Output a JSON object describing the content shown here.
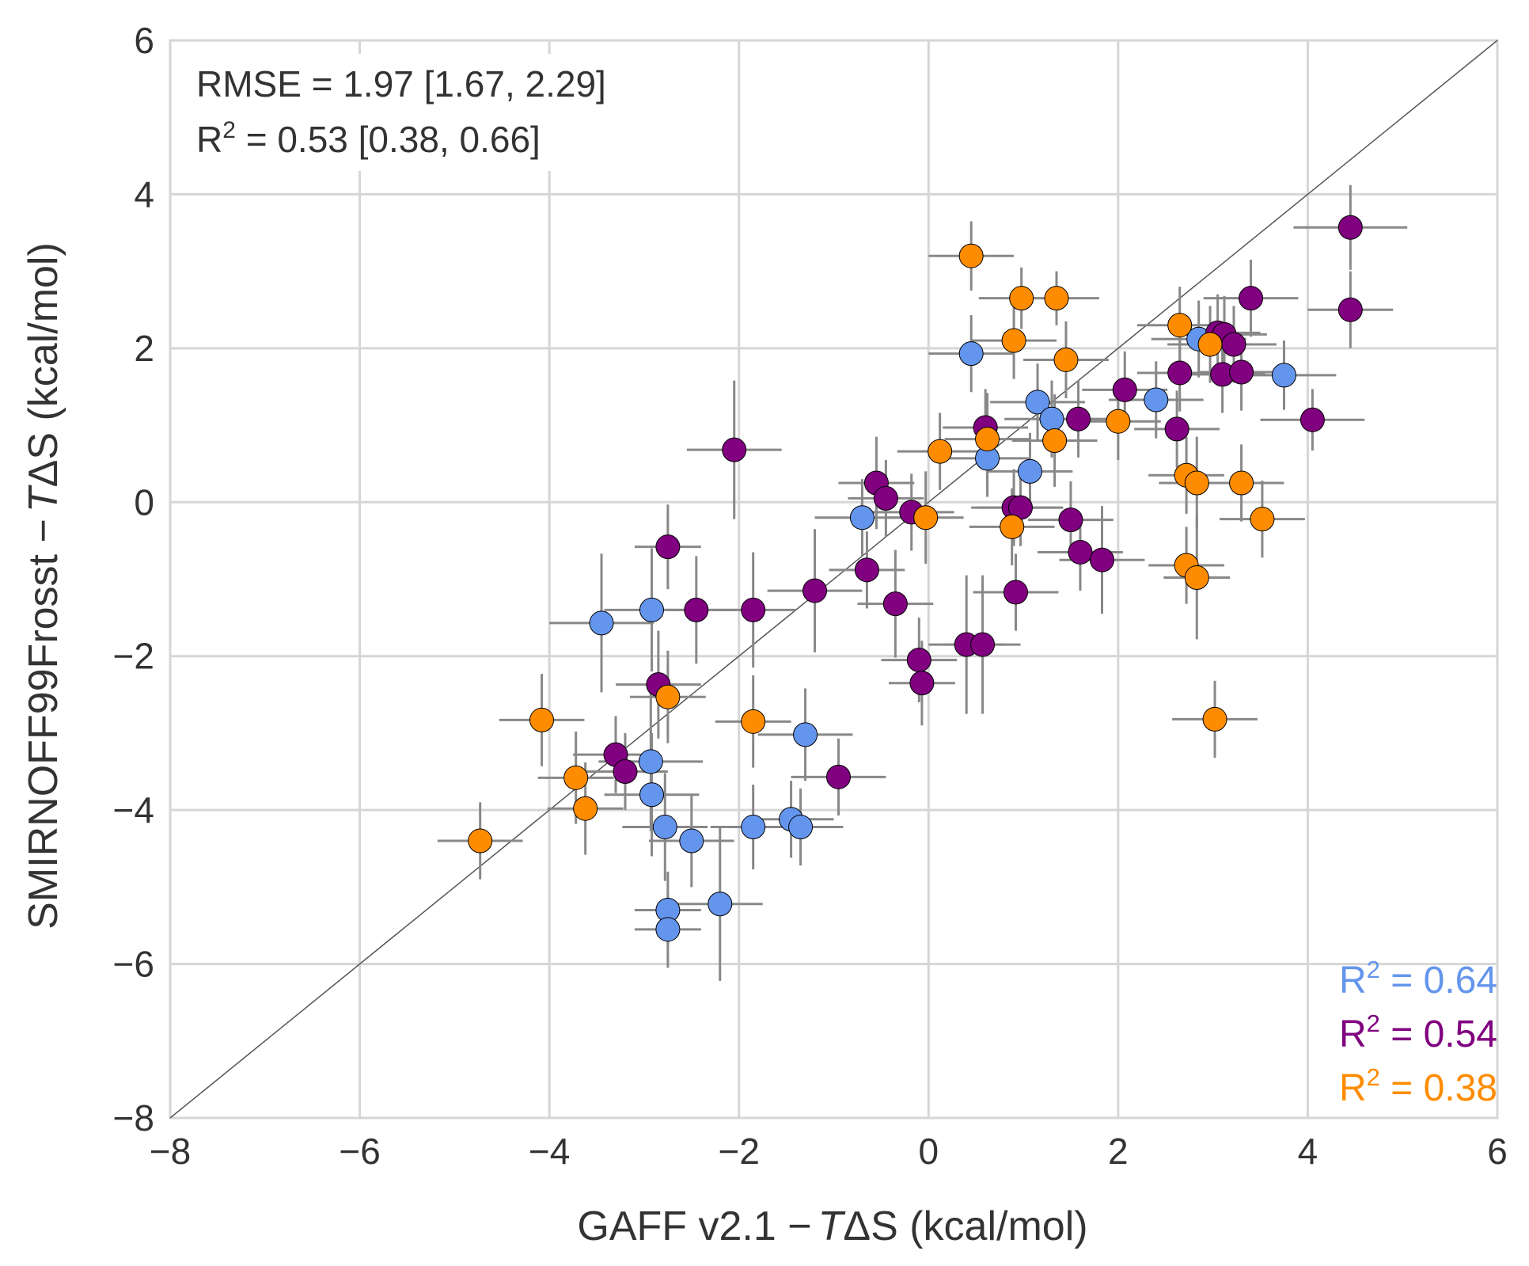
{
  "chart_data": {
    "type": "scatter",
    "xlabel_parts": [
      "GAFF v2.1 −",
      "T",
      "ΔS (kcal/mol)"
    ],
    "ylabel_parts": [
      "SMIRNOFF99Frosst −",
      "T",
      "ΔS (kcal/mol)"
    ],
    "xlim": [
      -8,
      6
    ],
    "ylim": [
      -8,
      6
    ],
    "xticks": [
      -8,
      -6,
      -4,
      -2,
      0,
      2,
      4,
      6
    ],
    "yticks": [
      -8,
      -6,
      -4,
      -2,
      0,
      2,
      4,
      6
    ],
    "xtick_labels": [
      "−8",
      "−6",
      "−4",
      "−2",
      "0",
      "2",
      "4",
      "6"
    ],
    "ytick_labels": [
      "−8",
      "−6",
      "−4",
      "−2",
      "0",
      "2",
      "4",
      "6"
    ],
    "grid": true,
    "diagonal": true,
    "stats_box": {
      "rmse_line": "RMSE = 1.97 [1.67, 2.29]",
      "r2_prefix": "R",
      "r2_sup": "2",
      "r2_rest": " = 0.53 [0.38, 0.66]"
    },
    "legend_position": "bottom-right",
    "series": [
      {
        "color": "#6495ED",
        "r2_label": {
          "prefix": "R",
          "sup": "2",
          "rest": " = 0.64"
        },
        "points": [
          {
            "x": 0.45,
            "y": 1.93,
            "xerr": 0.45,
            "yerr": 0.5
          },
          {
            "x": 1.15,
            "y": 1.3,
            "xerr": 0.5,
            "yerr": 0.5
          },
          {
            "x": 1.3,
            "y": 1.08,
            "xerr": 0.5,
            "yerr": 0.5
          },
          {
            "x": 2.4,
            "y": 1.33,
            "xerr": 0.5,
            "yerr": 0.5
          },
          {
            "x": 2.85,
            "y": 2.12,
            "xerr": 0.5,
            "yerr": 0.5
          },
          {
            "x": 3.75,
            "y": 1.65,
            "xerr": 0.55,
            "yerr": 0.45
          },
          {
            "x": 0.62,
            "y": 0.57,
            "xerr": 0.45,
            "yerr": 0.5
          },
          {
            "x": 1.07,
            "y": 0.4,
            "xerr": 0.45,
            "yerr": 0.5
          },
          {
            "x": -0.7,
            "y": -0.2,
            "xerr": 0.5,
            "yerr": 0.5
          },
          {
            "x": -3.45,
            "y": -1.57,
            "xerr": 0.55,
            "yerr": 0.9
          },
          {
            "x": -2.92,
            "y": -1.4,
            "xerr": 0.5,
            "yerr": 0.8
          },
          {
            "x": -2.93,
            "y": -3.37,
            "xerr": 0.55,
            "yerr": 0.9
          },
          {
            "x": -2.92,
            "y": -3.8,
            "xerr": 0.5,
            "yerr": 0.8
          },
          {
            "x": -2.78,
            "y": -4.22,
            "xerr": 0.45,
            "yerr": 0.7
          },
          {
            "x": -2.5,
            "y": -4.4,
            "xerr": 0.45,
            "yerr": 0.6
          },
          {
            "x": -1.85,
            "y": -4.22,
            "xerr": 0.45,
            "yerr": 0.55
          },
          {
            "x": -1.45,
            "y": -4.12,
            "xerr": 0.45,
            "yerr": 0.5
          },
          {
            "x": -1.35,
            "y": -4.22,
            "xerr": 0.45,
            "yerr": 0.5
          },
          {
            "x": -1.3,
            "y": -3.02,
            "xerr": 0.5,
            "yerr": 0.6
          },
          {
            "x": -2.75,
            "y": -5.3,
            "xerr": 0.35,
            "yerr": 0.5
          },
          {
            "x": -2.75,
            "y": -5.55,
            "xerr": 0.35,
            "yerr": 0.5
          },
          {
            "x": -2.2,
            "y": -5.22,
            "xerr": 0.45,
            "yerr": 1.0
          }
        ]
      },
      {
        "color": "#800080",
        "r2_label": {
          "prefix": "R",
          "sup": "2",
          "rest": " = 0.54"
        },
        "points": [
          {
            "x": 4.45,
            "y": 3.57,
            "xerr": 0.6,
            "yerr": 0.55
          },
          {
            "x": 4.45,
            "y": 2.5,
            "xerr": 0.45,
            "yerr": 0.5
          },
          {
            "x": 3.4,
            "y": 2.65,
            "xerr": 0.5,
            "yerr": 0.5
          },
          {
            "x": 3.05,
            "y": 2.2,
            "xerr": 0.45,
            "yerr": 0.5
          },
          {
            "x": 3.12,
            "y": 2.18,
            "xerr": 0.45,
            "yerr": 0.5
          },
          {
            "x": 3.22,
            "y": 2.05,
            "xerr": 0.45,
            "yerr": 0.5
          },
          {
            "x": 2.65,
            "y": 1.68,
            "xerr": 0.45,
            "yerr": 0.5
          },
          {
            "x": 3.1,
            "y": 1.66,
            "xerr": 0.45,
            "yerr": 0.5
          },
          {
            "x": 3.3,
            "y": 1.69,
            "xerr": 0.45,
            "yerr": 0.5
          },
          {
            "x": 2.07,
            "y": 1.46,
            "xerr": 0.45,
            "yerr": 0.5
          },
          {
            "x": 4.05,
            "y": 1.07,
            "xerr": 0.55,
            "yerr": 0.4
          },
          {
            "x": 2.62,
            "y": 0.95,
            "xerr": 0.45,
            "yerr": 0.5
          },
          {
            "x": 0.6,
            "y": 0.97,
            "xerr": 0.45,
            "yerr": 0.5
          },
          {
            "x": 1.58,
            "y": 1.08,
            "xerr": 0.45,
            "yerr": 0.5
          },
          {
            "x": -2.05,
            "y": 0.68,
            "xerr": 0.5,
            "yerr": 0.9
          },
          {
            "x": -0.55,
            "y": 0.25,
            "xerr": 0.4,
            "yerr": 0.6
          },
          {
            "x": -0.45,
            "y": 0.05,
            "xerr": 0.4,
            "yerr": 0.5
          },
          {
            "x": -0.18,
            "y": -0.13,
            "xerr": 0.45,
            "yerr": 0.5
          },
          {
            "x": 0.9,
            "y": -0.07,
            "xerr": 0.45,
            "yerr": 0.5
          },
          {
            "x": 0.97,
            "y": -0.07,
            "xerr": 0.45,
            "yerr": 0.5
          },
          {
            "x": 1.5,
            "y": -0.23,
            "xerr": 0.45,
            "yerr": 0.5
          },
          {
            "x": 1.6,
            "y": -0.65,
            "xerr": 0.45,
            "yerr": 0.5
          },
          {
            "x": 1.83,
            "y": -0.75,
            "xerr": 0.45,
            "yerr": 0.7
          },
          {
            "x": -0.65,
            "y": -0.88,
            "xerr": 0.4,
            "yerr": 0.5
          },
          {
            "x": -0.35,
            "y": -1.32,
            "xerr": 0.4,
            "yerr": 0.7
          },
          {
            "x": 0.92,
            "y": -1.17,
            "xerr": 0.45,
            "yerr": 0.5
          },
          {
            "x": -1.2,
            "y": -1.15,
            "xerr": 0.5,
            "yerr": 0.8
          },
          {
            "x": -2.75,
            "y": -0.58,
            "xerr": 0.35,
            "yerr": 0.55
          },
          {
            "x": -2.45,
            "y": -1.4,
            "xerr": 0.45,
            "yerr": 0.7
          },
          {
            "x": -1.85,
            "y": -1.4,
            "xerr": 0.45,
            "yerr": 0.75
          },
          {
            "x": -2.85,
            "y": -2.37,
            "xerr": 0.45,
            "yerr": 0.7
          },
          {
            "x": -3.3,
            "y": -3.28,
            "xerr": 0.45,
            "yerr": 0.5
          },
          {
            "x": -3.2,
            "y": -3.5,
            "xerr": 0.45,
            "yerr": 0.5
          },
          {
            "x": -0.95,
            "y": -3.57,
            "xerr": 0.5,
            "yerr": 0.5
          },
          {
            "x": -0.1,
            "y": -2.05,
            "xerr": 0.4,
            "yerr": 0.55
          },
          {
            "x": -0.07,
            "y": -2.35,
            "xerr": 0.35,
            "yerr": 0.55
          },
          {
            "x": 0.4,
            "y": -1.85,
            "xerr": 0.4,
            "yerr": 0.9
          },
          {
            "x": 0.57,
            "y": -1.85,
            "xerr": 0.4,
            "yerr": 0.9
          }
        ]
      },
      {
        "color": "#FF8C00",
        "r2_label": {
          "prefix": "R",
          "sup": "2",
          "rest": " = 0.38"
        },
        "points": [
          {
            "x": 0.45,
            "y": 3.2,
            "xerr": 0.45,
            "yerr": 0.45
          },
          {
            "x": 0.98,
            "y": 2.65,
            "xerr": 0.45,
            "yerr": 0.4
          },
          {
            "x": 1.35,
            "y": 2.65,
            "xerr": 0.45,
            "yerr": 0.35
          },
          {
            "x": 0.9,
            "y": 2.1,
            "xerr": 0.45,
            "yerr": 0.5
          },
          {
            "x": 1.45,
            "y": 1.85,
            "xerr": 0.45,
            "yerr": 0.5
          },
          {
            "x": 2.65,
            "y": 2.3,
            "xerr": 0.45,
            "yerr": 0.5
          },
          {
            "x": 2.97,
            "y": 2.05,
            "xerr": 0.45,
            "yerr": 0.5
          },
          {
            "x": 0.12,
            "y": 0.66,
            "xerr": 0.45,
            "yerr": 0.5
          },
          {
            "x": 0.62,
            "y": 0.82,
            "xerr": 0.45,
            "yerr": 0.6
          },
          {
            "x": 1.33,
            "y": 0.8,
            "xerr": 0.45,
            "yerr": 0.6
          },
          {
            "x": 2.0,
            "y": 1.05,
            "xerr": 0.45,
            "yerr": 0.5
          },
          {
            "x": 2.72,
            "y": 0.35,
            "xerr": 0.4,
            "yerr": 0.5
          },
          {
            "x": 2.83,
            "y": 0.25,
            "xerr": 0.4,
            "yerr": 0.6
          },
          {
            "x": 3.3,
            "y": 0.25,
            "xerr": 0.45,
            "yerr": 0.5
          },
          {
            "x": 3.52,
            "y": -0.22,
            "xerr": 0.45,
            "yerr": 0.5
          },
          {
            "x": -0.03,
            "y": -0.2,
            "xerr": 0.4,
            "yerr": 0.6
          },
          {
            "x": 0.88,
            "y": -0.32,
            "xerr": 0.45,
            "yerr": 0.5
          },
          {
            "x": 2.72,
            "y": -0.82,
            "xerr": 0.4,
            "yerr": 0.5
          },
          {
            "x": 2.83,
            "y": -0.98,
            "xerr": 0.35,
            "yerr": 0.8
          },
          {
            "x": 3.02,
            "y": -2.82,
            "xerr": 0.45,
            "yerr": 0.5
          },
          {
            "x": -2.75,
            "y": -2.53,
            "xerr": 0.4,
            "yerr": 0.6
          },
          {
            "x": -1.85,
            "y": -2.85,
            "xerr": 0.4,
            "yerr": 0.6
          },
          {
            "x": -4.08,
            "y": -2.83,
            "xerr": 0.45,
            "yerr": 0.6
          },
          {
            "x": -3.72,
            "y": -3.58,
            "xerr": 0.4,
            "yerr": 0.6
          },
          {
            "x": -3.62,
            "y": -3.98,
            "xerr": 0.4,
            "yerr": 0.6
          },
          {
            "x": -4.73,
            "y": -4.4,
            "xerr": 0.45,
            "yerr": 0.5
          }
        ]
      }
    ]
  }
}
